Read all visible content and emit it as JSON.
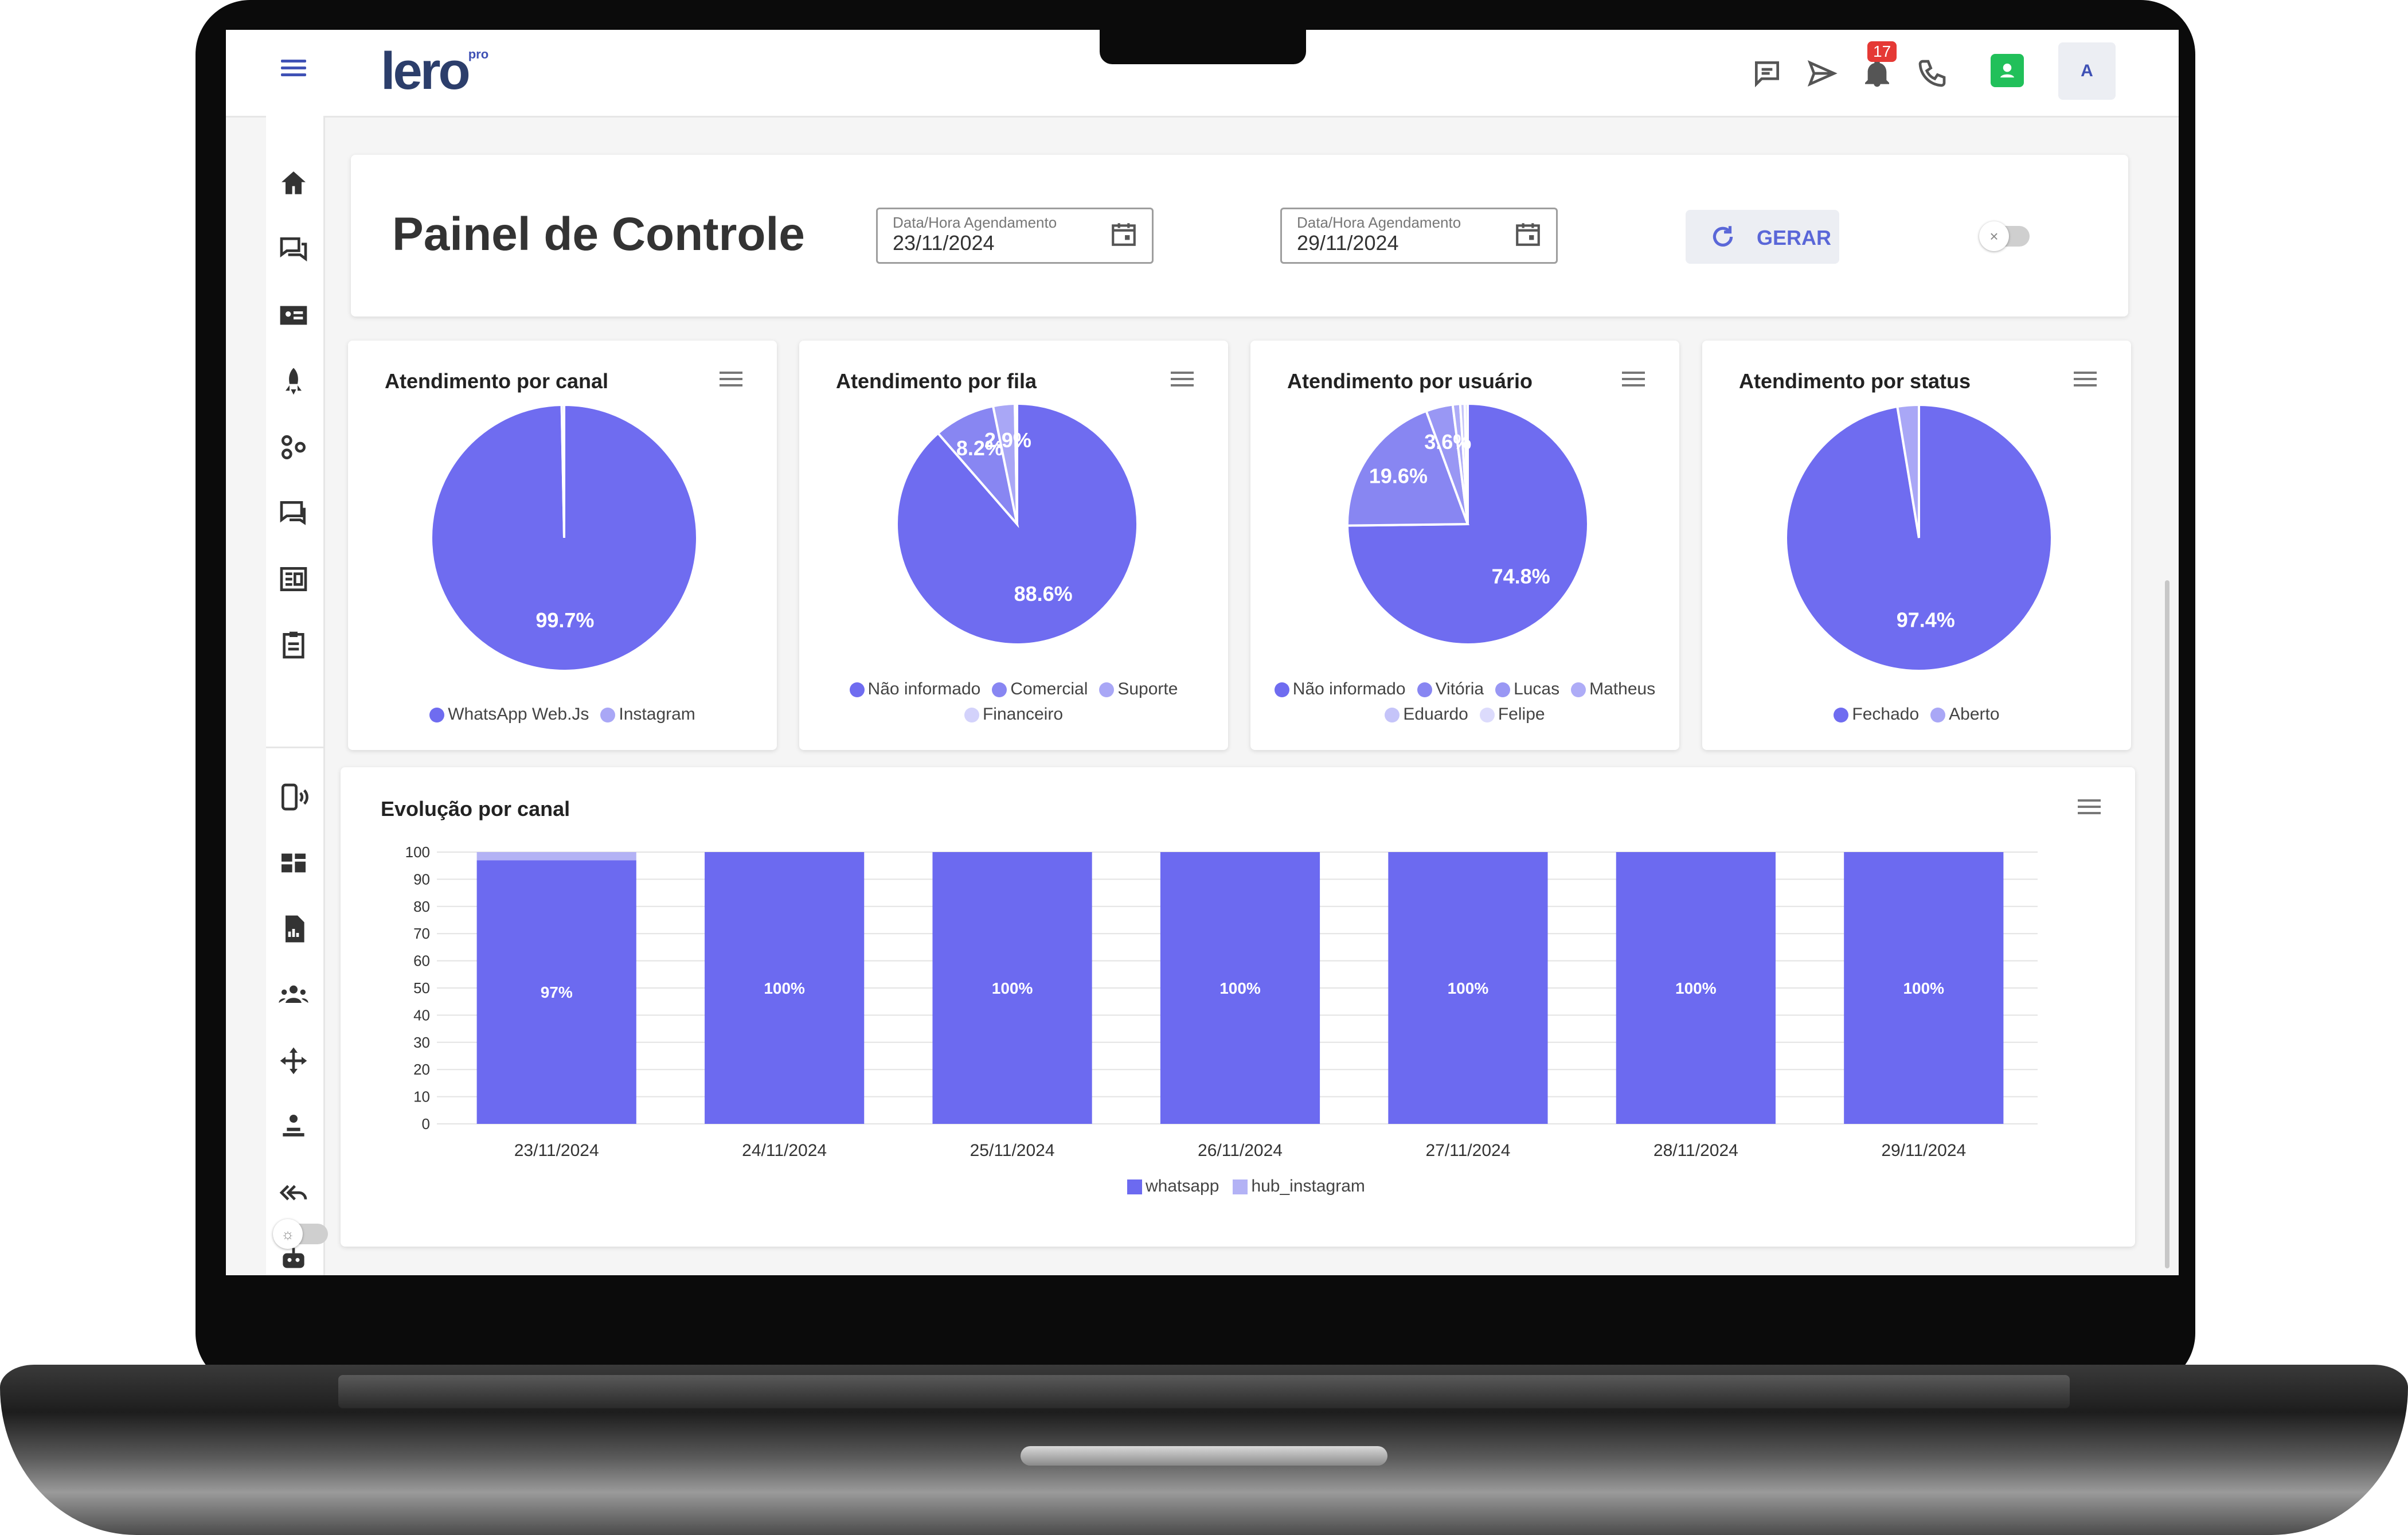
{
  "header": {
    "logo": "lero",
    "logo_badge": "pro",
    "notifications_count": "17",
    "avatar_letter": "A"
  },
  "sidebar": {
    "items": [
      "home-icon",
      "chat-icon",
      "contact-card-icon",
      "rocket-icon",
      "connections-icon",
      "messages-icon",
      "dashboard-list-icon",
      "clipboard-icon",
      "phone-signal-icon",
      "grid-icon",
      "report-icon",
      "users-icon",
      "move-icon",
      "queue-icon",
      "reply-all-icon",
      "robot-icon",
      "theme-toggle-icon",
      "clock-icon"
    ]
  },
  "filters": {
    "page_title": "Painel de Controle",
    "start_date": {
      "label": "Data/Hora Agendamento",
      "value": "23/11/2024"
    },
    "end_date": {
      "label": "Data/Hora Agendamento",
      "value": "29/11/2024"
    },
    "generate_label": "GERAR",
    "toggle_icon": "×"
  },
  "colors": {
    "primary": "#6c6af0",
    "accent": "#5a67d8",
    "light": "#a7a5f5"
  },
  "chart_data": [
    {
      "type": "pie",
      "title": "Atendimento por canal",
      "slices": [
        {
          "label": "WhatsApp Web.Js",
          "value": 99.7,
          "text": "99.7%",
          "color": "#6f6cf0"
        },
        {
          "label": "Instagram",
          "value": 0.3,
          "text": "",
          "color": "#a9a7f6"
        }
      ]
    },
    {
      "type": "pie",
      "title": "Atendimento por fila",
      "slices": [
        {
          "label": "Não informado",
          "value": 88.6,
          "text": "88.6%",
          "color": "#6f6cf0"
        },
        {
          "label": "Comercial",
          "value": 8.2,
          "text": "8.2%",
          "color": "#8886f2"
        },
        {
          "label": "Suporte",
          "value": 2.9,
          "text": "2.9%",
          "color": "#a9a7f6"
        },
        {
          "label": "Financeiro",
          "value": 0.3,
          "text": "",
          "color": "#d3d2fb"
        }
      ]
    },
    {
      "type": "pie",
      "title": "Atendimento por usuário",
      "slices": [
        {
          "label": "Não informado",
          "value": 74.8,
          "text": "74.8%",
          "color": "#6f6cf0"
        },
        {
          "label": "Vitória",
          "value": 19.6,
          "text": "19.6%",
          "color": "#8886f2"
        },
        {
          "label": "Lucas",
          "value": 3.6,
          "text": "3.6%",
          "color": "#9997f4"
        },
        {
          "label": "Matheus",
          "value": 1.0,
          "text": "",
          "color": "#aeacf7"
        },
        {
          "label": "Eduardo",
          "value": 0.6,
          "text": "",
          "color": "#c5c4f9"
        },
        {
          "label": "Felipe",
          "value": 0.4,
          "text": "",
          "color": "#dcdbfc"
        }
      ]
    },
    {
      "type": "pie",
      "title": "Atendimento por status",
      "slices": [
        {
          "label": "Fechado",
          "value": 97.4,
          "text": "97.4%",
          "color": "#6f6cf0"
        },
        {
          "label": "Aberto",
          "value": 2.6,
          "text": "",
          "color": "#a9a7f6"
        }
      ]
    },
    {
      "type": "bar",
      "title": "Evolução por canal",
      "stacked": true,
      "categories": [
        "23/11/2024",
        "24/11/2024",
        "25/11/2024",
        "26/11/2024",
        "27/11/2024",
        "28/11/2024",
        "29/11/2024"
      ],
      "series": [
        {
          "name": "whatsapp",
          "values": [
            97,
            100,
            100,
            100,
            100,
            100,
            100
          ],
          "labels": [
            "97%",
            "100%",
            "100%",
            "100%",
            "100%",
            "100%",
            "100%"
          ],
          "color": "#6c6af0"
        },
        {
          "name": "hub_instagram",
          "values": [
            3,
            0,
            0,
            0,
            0,
            0,
            0
          ],
          "color": "#b3b2f5"
        }
      ],
      "ylim": [
        0,
        100
      ],
      "yticks": [
        0,
        10,
        20,
        30,
        40,
        50,
        60,
        70,
        80,
        90,
        100
      ],
      "grid": true,
      "legend": "bottom"
    }
  ]
}
